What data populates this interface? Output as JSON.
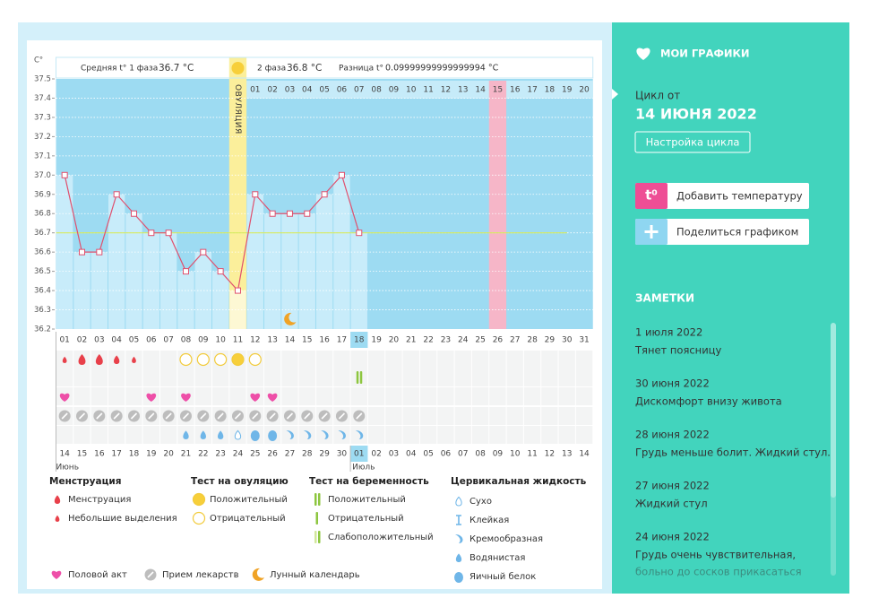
{
  "chart_data": {
    "type": "line",
    "y_unit": "C°",
    "categories": [
      "01",
      "02",
      "03",
      "04",
      "05",
      "06",
      "07",
      "08",
      "09",
      "10",
      "11",
      "12",
      "13",
      "14",
      "15",
      "16",
      "17",
      "18",
      "19",
      "20",
      "21",
      "22",
      "23",
      "24",
      "25",
      "26",
      "27",
      "28",
      "29",
      "30",
      "31"
    ],
    "values": [
      37.0,
      36.6,
      36.6,
      36.9,
      36.8,
      36.7,
      36.7,
      36.5,
      36.6,
      36.5,
      36.4,
      36.9,
      36.8,
      36.8,
      36.8,
      36.9,
      37.0,
      36.7,
      null,
      null,
      null,
      null,
      null,
      null,
      null,
      null,
      null,
      null,
      null,
      null,
      null
    ],
    "color": "#e0506e",
    "cover_line": 36.7,
    "ylim": [
      36.2,
      37.5
    ],
    "yticks": [
      37.5,
      37.4,
      37.3,
      37.2,
      37.1,
      {
        "value": 37.0,
        "label": "37.0"
      },
      36.9,
      36.8,
      36.7,
      36.6,
      36.5,
      36.4,
      36.3,
      36.2
    ],
    "grid": true,
    "phase1_label": "Средняя t° 1 фаза",
    "phase1_value": "36.7 °C",
    "phase2_label": "2 фаза",
    "phase2_value": "36.8 °C",
    "diff_label": "Разница t°",
    "diff_value": "0.09999999999999994 °C",
    "ovulation_label": "ОВУЛЯЦИЯ",
    "phase2_days": [
      "01",
      "02",
      "03",
      "04",
      "05",
      "06",
      "07",
      "08",
      "09",
      "10",
      "11",
      "12",
      "13",
      "14",
      "15",
      "16",
      "17",
      "18",
      "19",
      "20"
    ],
    "dates": [
      "14",
      "15",
      "16",
      "17",
      "18",
      "19",
      "20",
      "21",
      "22",
      "23",
      "24",
      "25",
      "26",
      "27",
      "28",
      "29",
      "30",
      "01",
      "02",
      "03",
      "04",
      "05",
      "06",
      "07",
      "08",
      "09",
      "10",
      "11",
      "12",
      "13",
      "14"
    ],
    "month_1": "Июнь",
    "month_2": "Июль"
  },
  "legend": [
    {
      "title": "Менструация",
      "items": [
        "Менструация",
        "Небольшие выделения"
      ]
    },
    {
      "title": "Тест на овуляцию",
      "items": [
        "Положительный",
        "Отрицательный"
      ]
    },
    {
      "title": "Тест на беременность",
      "items": [
        "Положительный",
        "Отрицательный",
        "Слабоположительный"
      ]
    },
    {
      "title": "Цервикальная жидкость",
      "items": [
        "Сухо",
        "Клейкая",
        "Кремообразная",
        "Водянистая",
        "Яичный белок"
      ]
    }
  ],
  "legend_bottom": [
    "Половой акт",
    "Прием лекарств",
    "Лунный календарь"
  ],
  "sidebar": {
    "title": "МОИ ГРАФИКИ",
    "cycle_label": "Цикл от",
    "cycle_date": "14 ИЮНЯ 2022",
    "settings_button": "Настройка цикла",
    "add_temp_icon": "t⁰",
    "add_temp": "Добавить температуру",
    "share": "Поделиться графиком",
    "notes_title": "ЗАМЕТКИ",
    "notes": [
      {
        "date": "1 июля 2022",
        "lines": [
          "Тянет поясницу"
        ]
      },
      {
        "date": "30 июня 2022",
        "lines": [
          "Дискомфорт внизу живота"
        ]
      },
      {
        "date": "28 июня 2022",
        "lines": [
          "Грудь меньше болит. Жидкий стул."
        ]
      },
      {
        "date": "27 июня 2022",
        "lines": [
          "Жидкий стул"
        ]
      },
      {
        "date": "24 июня 2022",
        "lines": [
          "Грудь очень чувствительная,",
          "больно до сосков прикасаться"
        ]
      }
    ]
  }
}
